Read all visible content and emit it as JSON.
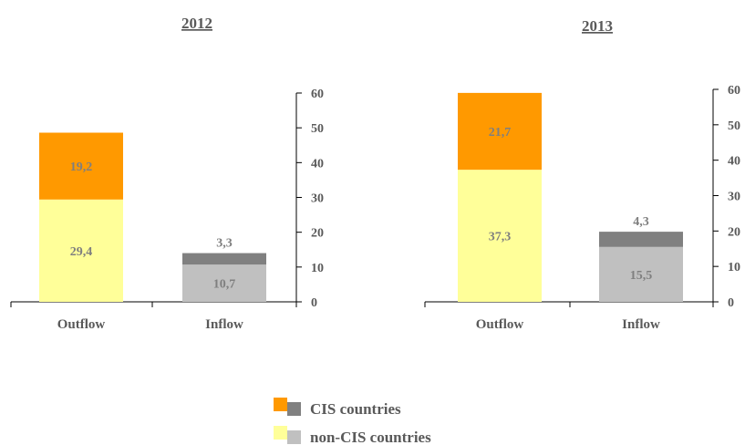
{
  "colors": {
    "cis_outflow": "#ff9900",
    "noncis_outflow": "#ffff99",
    "cis_inflow": "#808080",
    "noncis_inflow": "#c0c0c0",
    "axis": "#000000",
    "text": "#595959",
    "label": "#7f7f7f"
  },
  "chart_data": [
    {
      "type": "bar",
      "stacked": true,
      "title": "2012",
      "categories": [
        "Outflow",
        "Inflow"
      ],
      "series": [
        {
          "name": "non-CIS countries",
          "values": [
            29.4,
            10.7
          ],
          "labels": [
            "29,4",
            "10,7"
          ]
        },
        {
          "name": "CIS countries",
          "values": [
            19.2,
            3.3
          ],
          "labels": [
            "19,2",
            "3,3"
          ]
        }
      ],
      "ylim": [
        0,
        60
      ],
      "yticks": [
        "0",
        "10",
        "20",
        "30",
        "40",
        "50",
        "60"
      ],
      "yaxis_side": "right",
      "grid": false
    },
    {
      "type": "bar",
      "stacked": true,
      "title": "2013",
      "categories": [
        "Outflow",
        "Inflow"
      ],
      "series": [
        {
          "name": "non-CIS countries",
          "values": [
            37.3,
            15.5
          ],
          "labels": [
            "37,3",
            "15,5"
          ]
        },
        {
          "name": "CIS countries",
          "values": [
            21.7,
            4.3
          ],
          "labels": [
            "21,7",
            "4,3"
          ]
        }
      ],
      "ylim": [
        0,
        60
      ],
      "yticks": [
        "0",
        "10",
        "20",
        "30",
        "40",
        "50",
        "60"
      ],
      "yaxis_side": "right",
      "grid": false
    }
  ],
  "legend": {
    "placement": "bottom-center",
    "items": [
      {
        "label": "CIS countries"
      },
      {
        "label": "non-CIS countries"
      }
    ]
  }
}
